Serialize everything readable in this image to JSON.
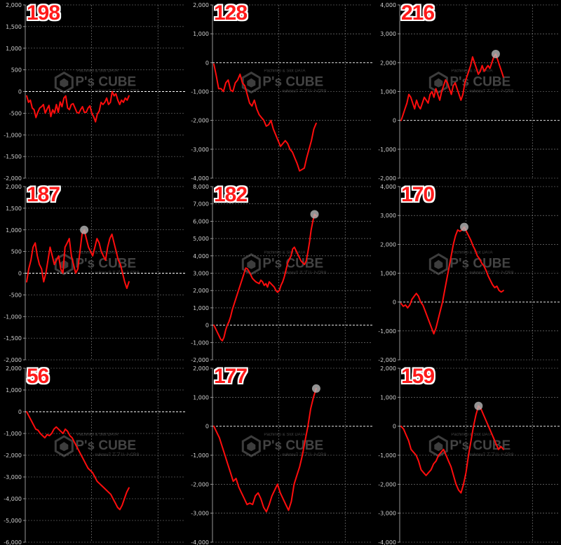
{
  "watermark": {
    "brand": "P's CUBE",
    "top": "Pachinko & Slot DATA",
    "bottom": "nukosu7 エブリ-トCP.8"
  },
  "colors": {
    "line": "#ff0d0d",
    "background": "#000000",
    "grid": "#8a8a8a",
    "zero_line": "#ffffff",
    "marker": "#b8b8b8"
  },
  "chart_data": [
    {
      "type": "line",
      "badge": "198",
      "ylim": [
        -2000,
        2000
      ],
      "yticks": [
        -2000,
        -1500,
        -1000,
        -500,
        0,
        500,
        1000,
        1500,
        2000
      ],
      "grid": true,
      "marker": false,
      "values": [
        -100,
        -250,
        -200,
        -380,
        -420,
        -600,
        -480,
        -380,
        -350,
        -300,
        -500,
        -400,
        -320,
        -580,
        -420,
        -500,
        -300,
        -480,
        -240,
        -350,
        -150,
        -100,
        -380,
        -420,
        -300,
        -280,
        -380,
        -480,
        -500,
        -420,
        -350,
        -480,
        -480,
        -380,
        -330,
        -500,
        -580,
        -700,
        -520,
        -450,
        -250,
        -300,
        -250,
        -150,
        -300,
        -250,
        0,
        -100,
        -50,
        -200,
        -300,
        -200,
        -250,
        -150,
        -200,
        -100
      ]
    },
    {
      "type": "line",
      "badge": "128",
      "ylim": [
        -4000,
        2000
      ],
      "yticks": [
        -4000,
        -3000,
        -2000,
        -1000,
        0,
        1000,
        2000
      ],
      "grid": true,
      "marker": false,
      "values": [
        -50,
        -450,
        -900,
        -900,
        -1000,
        -700,
        -600,
        -950,
        -1000,
        -700,
        -600,
        -400,
        -700,
        -800,
        -1100,
        -1400,
        -1500,
        -1300,
        -1600,
        -1800,
        -1900,
        -2000,
        -2200,
        -2150,
        -2000,
        -2300,
        -2500,
        -2700,
        -2900,
        -2800,
        -2700,
        -2800,
        -3000,
        -3100,
        -3300,
        -3500,
        -3750,
        -3700,
        -3650,
        -3300,
        -3000,
        -2700,
        -2300,
        -2100
      ]
    },
    {
      "type": "line",
      "badge": "216",
      "ylim": [
        -2000,
        4000
      ],
      "yticks": [
        -2000,
        -1000,
        0,
        1000,
        2000,
        3000,
        4000
      ],
      "grid": true,
      "marker": true,
      "values": [
        0,
        200,
        400,
        600,
        900,
        800,
        600,
        400,
        700,
        500,
        400,
        600,
        800,
        700,
        600,
        900,
        1000,
        800,
        1100,
        900,
        700,
        1000,
        1200,
        1400,
        1300,
        1100,
        900,
        1200,
        1300,
        1100,
        900,
        700,
        900,
        1300,
        1500,
        1700,
        1900,
        2200,
        2000,
        1800,
        1600,
        1700,
        1900,
        1700,
        1800,
        1900,
        1800,
        2000,
        2200,
        2300,
        2100,
        1900,
        1700,
        1500
      ]
    },
    {
      "type": "line",
      "badge": "187",
      "ylim": [
        -2000,
        2000
      ],
      "yticks": [
        -2000,
        -1500,
        -1000,
        -500,
        0,
        500,
        1000,
        1500,
        2000
      ],
      "grid": true,
      "marker": true,
      "values": [
        -200,
        100,
        300,
        600,
        700,
        400,
        200,
        100,
        -200,
        0,
        300,
        600,
        400,
        200,
        300,
        400,
        100,
        0,
        600,
        700,
        800,
        400,
        200,
        0,
        100,
        500,
        900,
        1000,
        800,
        600,
        500,
        400,
        600,
        800,
        700,
        500,
        400,
        300,
        600,
        800,
        900,
        700,
        500,
        300,
        200,
        0,
        -200,
        -350,
        -200
      ]
    },
    {
      "type": "line",
      "badge": "182",
      "ylim": [
        -2000,
        8000
      ],
      "yticks": [
        -2000,
        -1000,
        0,
        1000,
        2000,
        3000,
        4000,
        5000,
        6000,
        7000,
        8000
      ],
      "grid": true,
      "marker": true,
      "values": [
        0,
        -200,
        -400,
        -600,
        -800,
        -900,
        -700,
        -300,
        0,
        200,
        500,
        900,
        1200,
        1500,
        1800,
        2100,
        2400,
        2700,
        3000,
        3300,
        3250,
        3100,
        2900,
        2700,
        2600,
        2500,
        2450,
        2400,
        2600,
        2500,
        2300,
        2400,
        2200,
        2500,
        2400,
        2300,
        2200,
        2000,
        1900,
        2000,
        2300,
        2500,
        2800,
        3200,
        3600,
        3800,
        4000,
        4400,
        4500,
        4300,
        4100,
        3900,
        3700,
        3600,
        3500,
        3700,
        4200,
        4800,
        5500,
        6000,
        6400,
        6300
      ]
    },
    {
      "type": "line",
      "badge": "170",
      "ylim": [
        -2000,
        4000
      ],
      "yticks": [
        -2000,
        -1000,
        0,
        1000,
        2000,
        3000,
        4000
      ],
      "grid": true,
      "marker": true,
      "values": [
        -50,
        -150,
        -100,
        -200,
        -100,
        100,
        200,
        300,
        200,
        0,
        -100,
        -300,
        -500,
        -700,
        -900,
        -1100,
        -900,
        -600,
        -300,
        0,
        400,
        800,
        1200,
        1600,
        2000,
        2300,
        2500,
        2450,
        2500,
        2600,
        2450,
        2300,
        2150,
        1950,
        1800,
        1600,
        1500,
        1350,
        1250,
        1100,
        900,
        750,
        600,
        500,
        550,
        400,
        350,
        400
      ]
    },
    {
      "type": "line",
      "badge": "56",
      "ylim": [
        -6000,
        2000
      ],
      "yticks": [
        -6000,
        -5000,
        -4000,
        -3000,
        -2000,
        -1000,
        0,
        1000,
        2000
      ],
      "grid": true,
      "marker": false,
      "values": [
        0,
        -200,
        -400,
        -600,
        -800,
        -850,
        -1000,
        -1100,
        -1200,
        -1050,
        -1100,
        -1000,
        -800,
        -700,
        -800,
        -900,
        -1000,
        -800,
        -900,
        -1100,
        -1200,
        -1400,
        -1600,
        -1800,
        -2000,
        -2200,
        -2400,
        -2600,
        -2700,
        -2800,
        -3000,
        -3200,
        -3300,
        -3400,
        -3500,
        -3600,
        -3700,
        -3800,
        -4000,
        -4200,
        -4400,
        -4500,
        -4300,
        -4000,
        -3700,
        -3500
      ]
    },
    {
      "type": "line",
      "badge": "177",
      "ylim": [
        -4000,
        2000
      ],
      "yticks": [
        -4000,
        -3000,
        -2000,
        -1000,
        0,
        1000,
        2000
      ],
      "grid": true,
      "marker": true,
      "values": [
        0,
        -200,
        -400,
        -700,
        -1000,
        -1300,
        -1600,
        -1900,
        -1800,
        -2100,
        -2300,
        -2500,
        -2700,
        -2650,
        -2700,
        -2400,
        -2300,
        -2500,
        -2800,
        -2950,
        -2700,
        -2400,
        -2200,
        -2000,
        -2300,
        -2500,
        -2700,
        -2900,
        -2600,
        -2000,
        -1700,
        -1400,
        -1000,
        -500,
        0,
        600,
        1000,
        1300
      ]
    },
    {
      "type": "line",
      "badge": "159",
      "ylim": [
        -4000,
        2000
      ],
      "yticks": [
        -4000,
        -3000,
        -2000,
        -1000,
        0,
        1000,
        2000
      ],
      "grid": true,
      "marker": true,
      "values": [
        0,
        -100,
        -300,
        -500,
        -800,
        -900,
        -1000,
        -1200,
        -1500,
        -1600,
        -1700,
        -1600,
        -1500,
        -1300,
        -1200,
        -1000,
        -900,
        -800,
        -1000,
        -1200,
        -1400,
        -1700,
        -2000,
        -2200,
        -2300,
        -2000,
        -1600,
        -1000,
        -500,
        0,
        400,
        700,
        600,
        400,
        200,
        0,
        -200,
        -400,
        -600,
        -800,
        -700,
        -800
      ]
    }
  ]
}
